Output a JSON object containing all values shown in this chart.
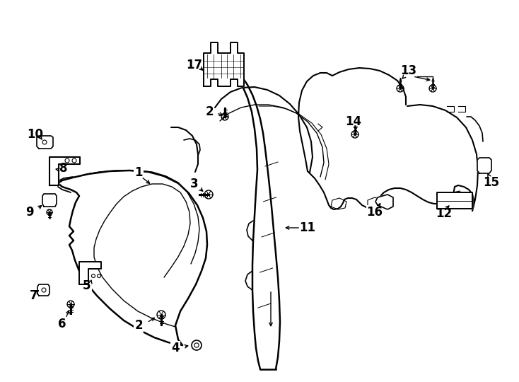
{
  "background_color": "#ffffff",
  "line_color": "#000000",
  "fig_w": 7.34,
  "fig_h": 5.4,
  "dpi": 100
}
